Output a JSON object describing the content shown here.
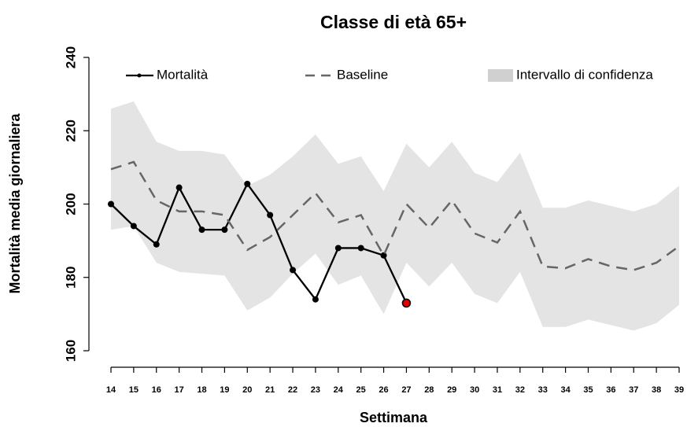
{
  "chart_data": {
    "type": "line",
    "title": "Classe di età 65+",
    "xlabel": "Settimana",
    "ylabel": "Mortalità media giornaliera",
    "x": [
      14,
      15,
      16,
      17,
      18,
      19,
      20,
      21,
      22,
      23,
      24,
      25,
      26,
      27,
      28,
      29,
      30,
      31,
      32,
      33,
      34,
      35,
      36,
      37,
      38,
      39
    ],
    "xlim": [
      14,
      39
    ],
    "xticks": [
      14,
      15,
      16,
      17,
      18,
      19,
      20,
      21,
      22,
      23,
      24,
      25,
      26,
      27,
      28,
      29,
      30,
      31,
      32,
      33,
      34,
      35,
      36,
      37,
      38,
      39
    ],
    "ylim": [
      160,
      240
    ],
    "yticks": [
      160,
      180,
      200,
      220,
      240
    ],
    "series": [
      {
        "name": "Mortalità",
        "color": "#000000",
        "dash": false,
        "markers": true,
        "last_point_color": "#e00000",
        "values": [
          200,
          194,
          189,
          204.5,
          193,
          193,
          205.5,
          197,
          182,
          174,
          188,
          188,
          186,
          173,
          null,
          null,
          null,
          null,
          null,
          null,
          null,
          null,
          null,
          null,
          null,
          null
        ]
      },
      {
        "name": "Baseline",
        "color": "#666666",
        "dash": true,
        "markers": false,
        "values": [
          209.5,
          211.5,
          201,
          198,
          198,
          197,
          187.5,
          191,
          197,
          203,
          195,
          197,
          186,
          200,
          193.5,
          201,
          192,
          189.5,
          198,
          183,
          182.5,
          185,
          183,
          182,
          184,
          188.5
        ]
      }
    ],
    "band": {
      "name": "Intervallo di confidenza",
      "color": "#e4e4e4",
      "upper": [
        226,
        228,
        217,
        214.5,
        214.5,
        213.5,
        205,
        208,
        213,
        219,
        211,
        213,
        203.5,
        216.5,
        210,
        217,
        208.5,
        206,
        214,
        199,
        199,
        201,
        199.5,
        198,
        200,
        205
      ],
      "lower": [
        193,
        194,
        184,
        181.5,
        181,
        180.5,
        171,
        174.5,
        181,
        186.5,
        178,
        180.5,
        170,
        184,
        177.5,
        184,
        175.5,
        173,
        181.5,
        166.5,
        166.5,
        168.5,
        167,
        165.5,
        167.5,
        172.5
      ]
    }
  }
}
